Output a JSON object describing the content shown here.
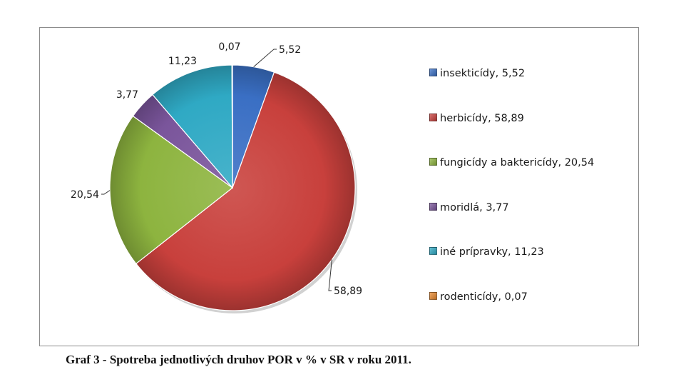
{
  "chart_data": {
    "type": "pie",
    "title": "",
    "slices": [
      {
        "label": "insekticídy",
        "value": 5.52,
        "display": "5,52",
        "legend": "insekticídy, 5,52",
        "color": "#3a6fc4"
      },
      {
        "label": "herbicídy",
        "value": 58.89,
        "display": "58,89",
        "legend": "herbicídy, 58,89",
        "color": "#c8403c"
      },
      {
        "label": "fungicídy a baktericídy",
        "value": 20.54,
        "display": "20,54",
        "legend": "fungicídy a baktericídy, 20,54",
        "color": "#8db43f"
      },
      {
        "label": "moridlá",
        "value": 3.77,
        "display": "3,77",
        "legend": "moridlá, 3,77",
        "color": "#7a559b"
      },
      {
        "label": "iné prípravky",
        "value": 11.23,
        "display": "11,23",
        "legend": "iné prípravky, 11,23",
        "color": "#2fa9c4"
      },
      {
        "label": "rodenticídy",
        "value": 0.07,
        "display": "0,07",
        "legend": "rodenticídy, 0,07",
        "color": "#e8882e"
      }
    ],
    "legend_placement": "right"
  },
  "caption": "Graf 3 - Spotreba jednotlivých druhov POR v % v SR v roku 2011."
}
